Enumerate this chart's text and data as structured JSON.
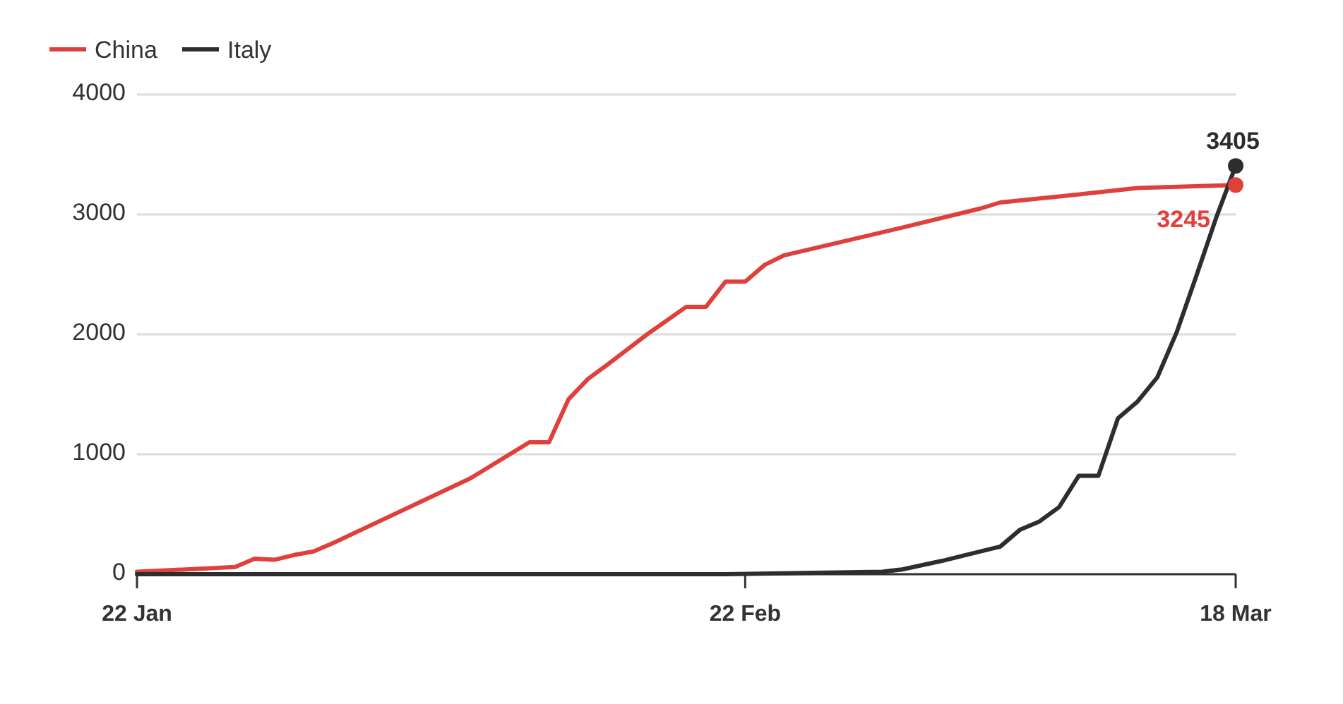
{
  "chart_data": {
    "type": "line",
    "xlim": [
      "--01-22",
      "--03-18"
    ],
    "xticks": [
      {
        "value": "--01-22",
        "label": "22 Jan"
      },
      {
        "value": "--02-22",
        "label": "22 Feb"
      },
      {
        "value": "--03-18",
        "label": "18 Mar"
      }
    ],
    "ylim": [
      0,
      4000
    ],
    "yticks": [
      0,
      1000,
      2000,
      3000,
      4000
    ],
    "grid": "y",
    "legend": "top left",
    "series": [
      {
        "name": "China",
        "color": "#e0403c",
        "x": [
          "--01-22",
          "--01-27",
          "--01-28",
          "--01-29",
          "--01-30",
          "--01-31",
          "--02-01",
          "--02-08",
          "--02-11",
          "--02-12",
          "--02-13",
          "--02-14",
          "--02-15",
          "--02-17",
          "--02-19",
          "--02-20",
          "--02-21",
          "--02-22",
          "--02-23",
          "--02-24",
          "--03-01",
          "--03-05",
          "--03-06",
          "--03-09",
          "--03-13",
          "--03-18"
        ],
        "values": [
          20,
          60,
          130,
          120,
          160,
          190,
          260,
          800,
          1100,
          1100,
          1460,
          1630,
          1750,
          2000,
          2230,
          2230,
          2440,
          2440,
          2580,
          2660,
          2890,
          3050,
          3100,
          3150,
          3220,
          3245
        ],
        "value_labels": [
          null,
          null,
          null,
          null,
          null,
          null,
          null,
          null,
          null,
          null,
          null,
          null,
          null,
          null,
          null,
          null,
          null,
          null,
          null,
          null,
          null,
          null,
          null,
          null,
          null,
          "3245"
        ]
      },
      {
        "name": "Italy",
        "color": "#2d2d2d",
        "x": [
          "--01-22",
          "--02-21",
          "--02-29",
          "--03-01",
          "--03-03",
          "--03-05",
          "--03-06",
          "--03-07",
          "--03-08",
          "--03-09",
          "--03-10",
          "--03-11",
          "--03-12",
          "--03-13",
          "--03-14",
          "--03-15",
          "--03-16",
          "--03-17",
          "--03-18"
        ],
        "values": [
          0,
          0,
          20,
          40,
          110,
          190,
          230,
          370,
          440,
          560,
          820,
          820,
          1300,
          1440,
          1640,
          2020,
          2490,
          2970,
          3405
        ],
        "value_labels": [
          null,
          null,
          null,
          null,
          null,
          null,
          null,
          null,
          null,
          null,
          null,
          null,
          null,
          null,
          null,
          null,
          null,
          null,
          "3405"
        ]
      }
    ]
  }
}
